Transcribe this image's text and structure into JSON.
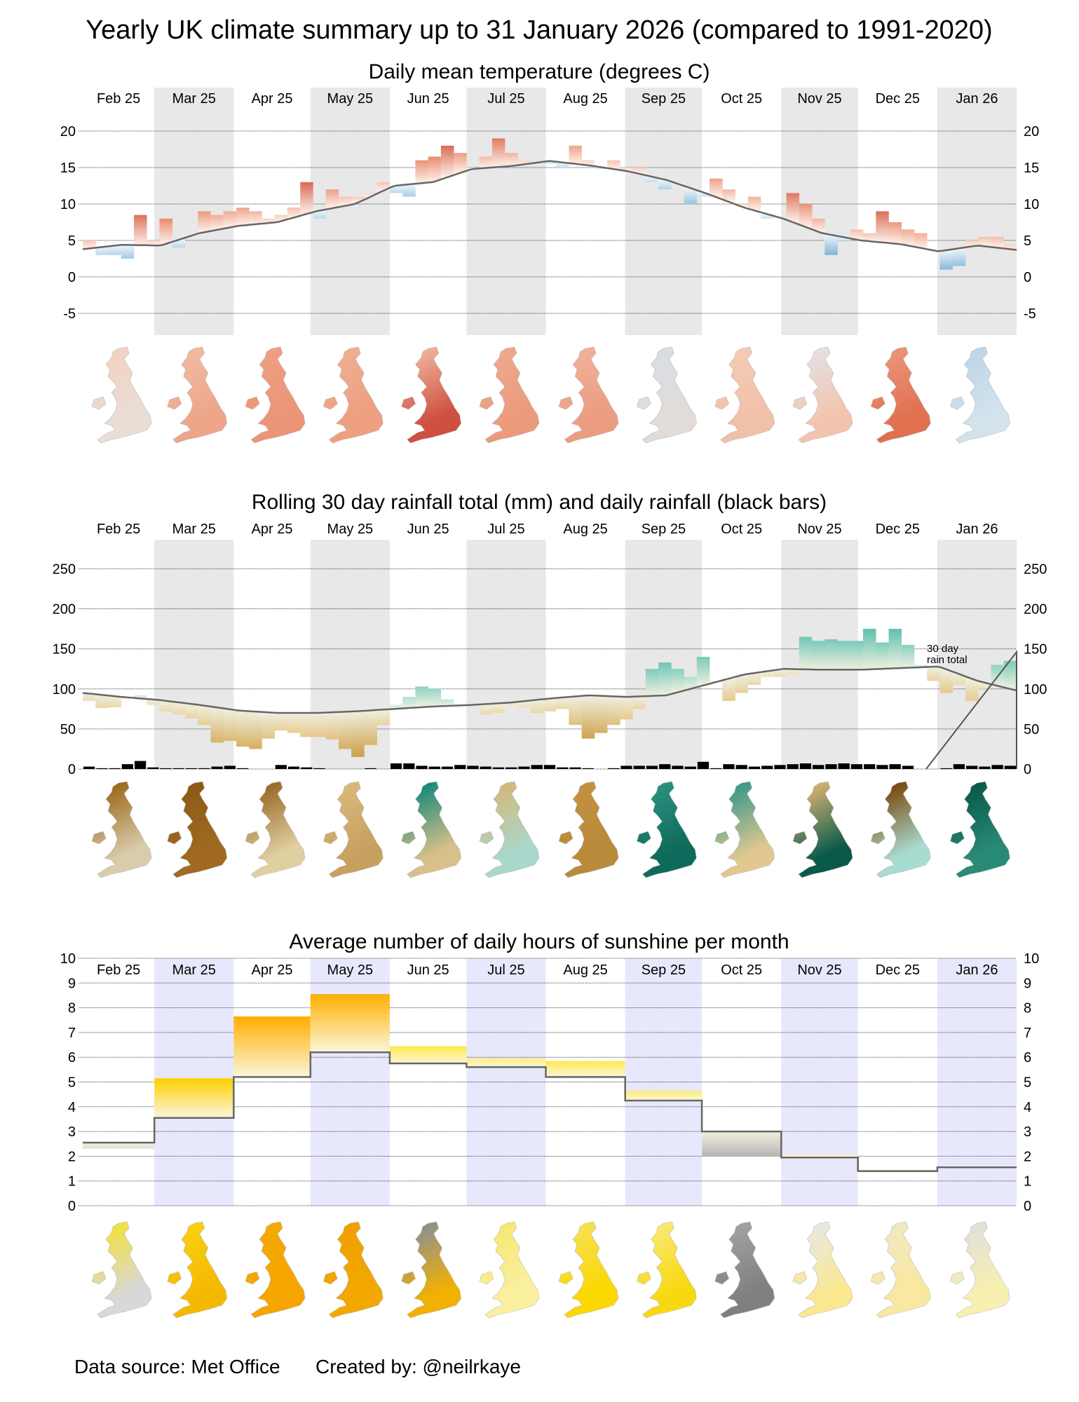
{
  "title": "Yearly UK climate summary up to 31 January 2026 (compared to 1991-2020)",
  "footer": {
    "source": "Data source: Met Office",
    "credit": "Created by: @neilrkaye"
  },
  "months": [
    "Feb 25",
    "Mar 25",
    "Apr 25",
    "May 25",
    "Jun 25",
    "Jul 25",
    "Aug 25",
    "Sep 25",
    "Oct 25",
    "Nov 25",
    "Dec 25",
    "Jan 26"
  ],
  "chart_data": [
    {
      "type": "bar",
      "title": "Daily mean temperature (degrees C)",
      "ylabel": "degrees C",
      "ylim": [
        -7.5,
        26
      ],
      "y_ticks": [
        20,
        15,
        10,
        5,
        0,
        -5
      ],
      "bin_days": 5,
      "values": [
        5,
        3,
        3,
        2.5,
        8.5,
        5,
        8,
        4,
        5.5,
        9,
        8.5,
        9,
        9.5,
        9,
        8,
        8.5,
        9.5,
        13,
        8,
        12,
        11,
        11,
        11.5,
        13,
        11.5,
        11,
        16,
        16.5,
        18,
        17,
        15,
        16.5,
        19,
        17,
        16,
        15.5,
        15.5,
        15,
        18,
        16,
        14.8,
        16,
        15,
        15,
        13,
        12,
        13,
        10,
        11,
        13.5,
        12,
        10,
        11,
        8,
        8,
        11.5,
        10,
        8,
        3,
        5,
        6.5,
        6,
        9,
        7.5,
        6.5,
        6,
        3.5,
        1,
        1.5,
        5,
        5.5,
        5.5,
        4.5
      ],
      "normal": [
        3.8,
        4.4,
        4.3,
        6,
        7,
        7.5,
        9,
        10,
        12.5,
        13,
        14.8,
        15.2,
        15.9,
        15.3,
        14.5,
        13.3,
        11.5,
        9.5,
        8,
        6,
        5,
        4.5,
        3.5,
        4.3,
        3.7
      ],
      "colors": {
        "warm": "#a50f15",
        "cool": "#08519c",
        "line": "#666666",
        "band": "#e8e8e8"
      },
      "maps": [
        [
          "#f3d2c2",
          "#e9ddd6"
        ],
        [
          "#f1b9a0",
          "#eea58a"
        ],
        [
          "#ee9f80",
          "#ec9478"
        ],
        [
          "#f0ad90",
          "#ee9f80"
        ],
        [
          "#efb09a",
          "#cf4f40"
        ],
        [
          "#eea88c",
          "#ec9a7c"
        ],
        [
          "#f0b098",
          "#ec9c80"
        ],
        [
          "#d8dde4",
          "#e2dcd8"
        ],
        [
          "#f4cbb6",
          "#f1c0a8"
        ],
        [
          "#e4e0e2",
          "#f2c4ad"
        ],
        [
          "#ec9478",
          "#e07050"
        ],
        [
          "#bcd6ea",
          "#d4e2ec"
        ]
      ]
    },
    {
      "type": "area",
      "title": "Rolling 30 day rainfall total (mm) and daily rainfall (black bars)",
      "ylabel": "mm",
      "ylim": [
        0,
        260
      ],
      "y_ticks": [
        250,
        200,
        150,
        100,
        50,
        0
      ],
      "annotation": [
        "30 day",
        "rain total"
      ],
      "bin_days": 5,
      "rolling": [
        85,
        76,
        77,
        88,
        92,
        80,
        72,
        68,
        63,
        55,
        33,
        35,
        28,
        25,
        38,
        48,
        45,
        40,
        40,
        37,
        25,
        15,
        30,
        55,
        80,
        90,
        103,
        100,
        87,
        80,
        78,
        68,
        70,
        80,
        77,
        70,
        72,
        75,
        55,
        38,
        45,
        55,
        62,
        75,
        125,
        133,
        125,
        115,
        140,
        110,
        85,
        95,
        105,
        115,
        115,
        118,
        165,
        160,
        162,
        160,
        160,
        175,
        158,
        175,
        155,
        130,
        110,
        95,
        105,
        85,
        100,
        130,
        135
      ],
      "daily": [
        3,
        1,
        1,
        6,
        10,
        2,
        1,
        1,
        1,
        1,
        3,
        4,
        1,
        0,
        0,
        5,
        3,
        2,
        1,
        0,
        0,
        0,
        1,
        0,
        7,
        7,
        4,
        3,
        3,
        5,
        4,
        3,
        2,
        2,
        3,
        5,
        5,
        2,
        2,
        1,
        0,
        1,
        4,
        4,
        4,
        6,
        4,
        3,
        9,
        1,
        6,
        5,
        3,
        4,
        5,
        6,
        7,
        5,
        6,
        7,
        6,
        6,
        5,
        6,
        4,
        0,
        0,
        1,
        6,
        4,
        3,
        5,
        4
      ],
      "normal": [
        95,
        90,
        86,
        80,
        73,
        70,
        70,
        72,
        75,
        78,
        80,
        83,
        88,
        92,
        90,
        92,
        105,
        118,
        125,
        124,
        124,
        126,
        128,
        110,
        98
      ],
      "colors": {
        "wet": "#5fbfae",
        "dry": "#d2a850",
        "bars": "#000000",
        "line": "#666666",
        "band": "#e8e8e8"
      },
      "maps": [
        [
          "#9c6a1e",
          "#d8ccaa"
        ],
        [
          "#8c5a16",
          "#a06a20"
        ],
        [
          "#9a6a28",
          "#e0cfa0"
        ],
        [
          "#d8b878",
          "#c8a060"
        ],
        [
          "#1a8a78",
          "#d9c08a"
        ],
        [
          "#d4b87a",
          "#a8d8cc"
        ],
        [
          "#c49040",
          "#b88a3a"
        ],
        [
          "#2a9080",
          "#0e6a5a"
        ],
        [
          "#3a9a8a",
          "#e0c890"
        ],
        [
          "#d0b070",
          "#0a5a4a"
        ],
        [
          "#7a4a10",
          "#a8dcd0"
        ],
        [
          "#0a5a4a",
          "#2a8a78"
        ]
      ]
    },
    {
      "type": "bar",
      "title": "Average number of daily hours of sunshine per month",
      "ylabel": "hours",
      "ylim": [
        0,
        10
      ],
      "y_ticks": [
        10,
        9,
        8,
        7,
        6,
        5,
        4,
        3,
        2,
        1,
        0
      ],
      "actual": [
        2.3,
        5.15,
        7.65,
        8.55,
        6.45,
        5.95,
        5.85,
        4.65,
        2.0,
        2.05,
        1.45,
        1.55
      ],
      "normal": [
        2.55,
        3.55,
        5.2,
        6.2,
        5.75,
        5.6,
        5.2,
        4.25,
        3.0,
        1.95,
        1.4,
        1.55
      ],
      "colors": {
        "sunny": "#ffb000",
        "dull": "#aaaaaa",
        "line": "#666666",
        "band": "#e8e8fc"
      },
      "maps": [
        [
          "#f2e040",
          "#d8d8d8"
        ],
        [
          "#f8d010",
          "#f5b800"
        ],
        [
          "#f4a800",
          "#f6a500"
        ],
        [
          "#f0a000",
          "#f3a800"
        ],
        [
          "#909090",
          "#f2b000"
        ],
        [
          "#f5e870",
          "#faf0a0"
        ],
        [
          "#f8e050",
          "#fad800"
        ],
        [
          "#fbe870",
          "#f8d810"
        ],
        [
          "#a0a0a0",
          "#808080"
        ],
        [
          "#e8e8e0",
          "#fae890"
        ],
        [
          "#f0e8c0",
          "#fae8a0"
        ],
        [
          "#e0e0d8",
          "#f8f0b0"
        ]
      ]
    }
  ]
}
